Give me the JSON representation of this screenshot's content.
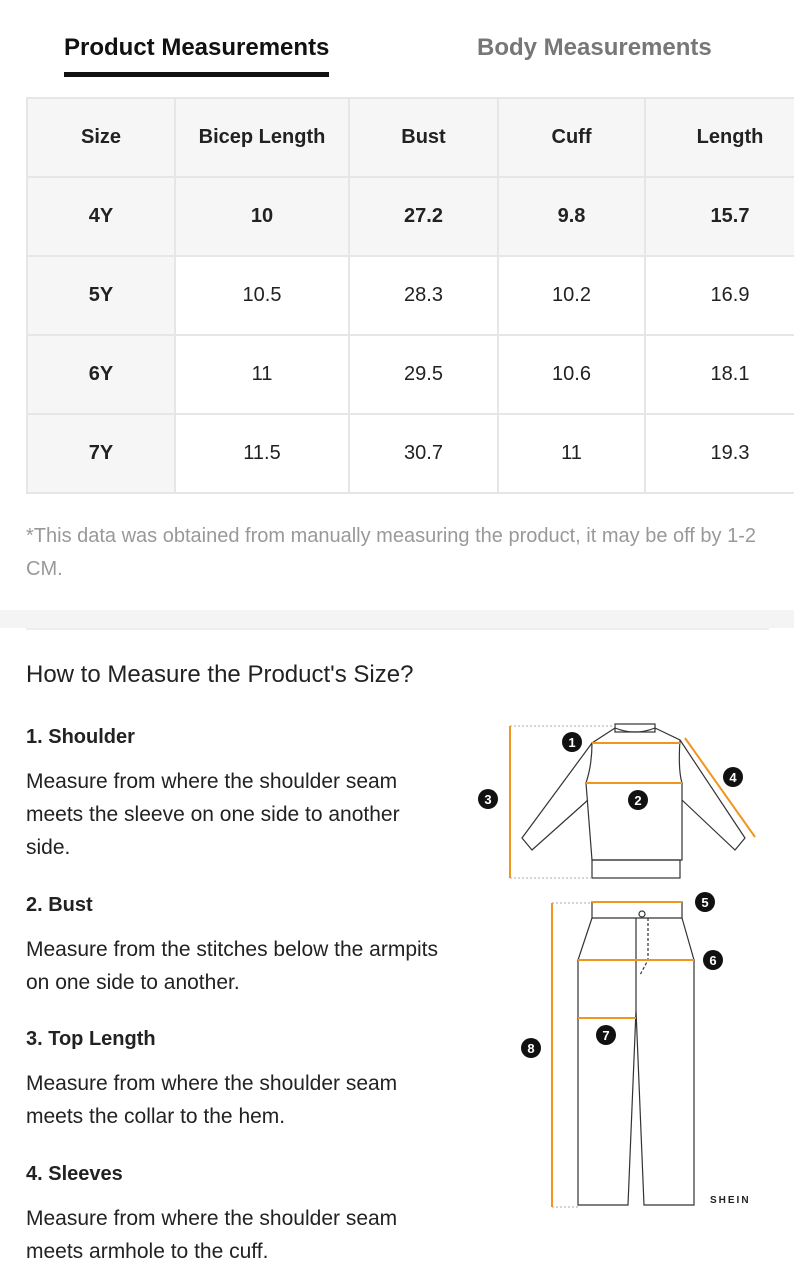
{
  "tabs": [
    {
      "label": "Product Measurements",
      "active": true
    },
    {
      "label": "Body Measurements",
      "active": false
    }
  ],
  "table": {
    "headers": [
      "Size",
      "Bicep Length",
      "Bust",
      "Cuff",
      "Length"
    ],
    "rows": [
      [
        "4Y",
        "10",
        "27.2",
        "9.8",
        "15.7"
      ],
      [
        "5Y",
        "10.5",
        "28.3",
        "10.2",
        "16.9"
      ],
      [
        "6Y",
        "11",
        "29.5",
        "10.6",
        "18.1"
      ],
      [
        "7Y",
        "11.5",
        "30.7",
        "11",
        "19.3"
      ]
    ]
  },
  "note": "*This data was obtained from manually measuring the product, it may be off by 1-2 CM.",
  "howto": {
    "title": "How to Measure the Product's Size?",
    "sections": [
      {
        "title": "1. Shoulder",
        "text": "Measure from where the shoulder seam meets the sleeve on one side to another side."
      },
      {
        "title": "2. Bust",
        "text": "Measure from the stitches below the armpits on one side to another."
      },
      {
        "title": "3. Top Length",
        "text": "Measure from where the shoulder seam meets the collar to the hem."
      },
      {
        "title": "4. Sleeves",
        "text": "Measure from where the shoulder seam meets armhole to the cuff."
      }
    ]
  },
  "diagram": {
    "markers": [
      "1",
      "2",
      "3",
      "4",
      "5",
      "6",
      "7",
      "8"
    ],
    "brand": "SHEIN",
    "accent": "#f0961e"
  }
}
